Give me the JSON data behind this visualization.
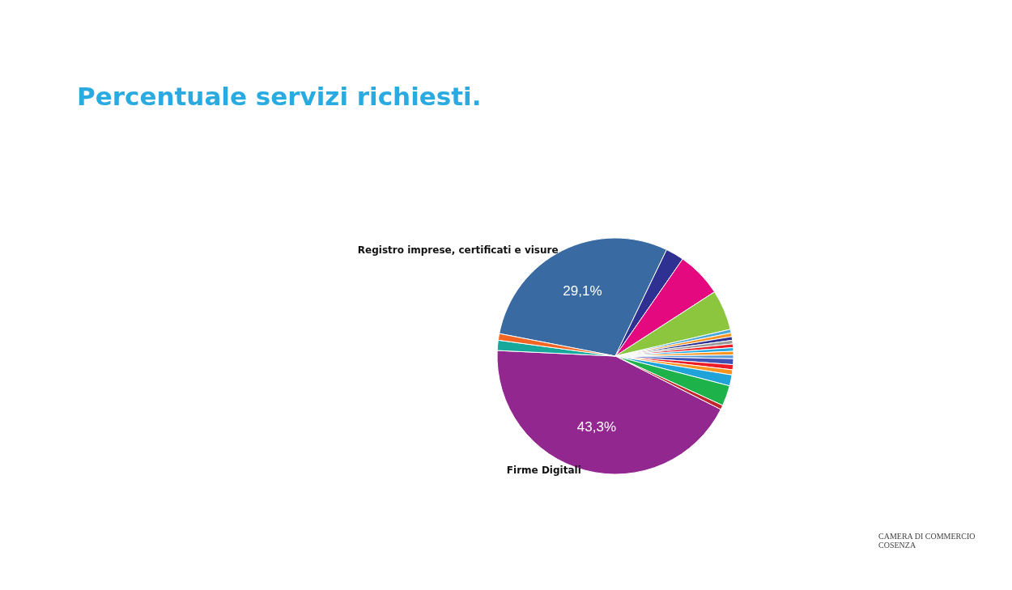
{
  "chart_data": {
    "type": "pie",
    "title": "Percentuale servizi richiesti.",
    "categories": [
      "Registro imprese, certificati e visure",
      null,
      null,
      null,
      null,
      null,
      null,
      null,
      null,
      null,
      null,
      null,
      null,
      null,
      null,
      null,
      null,
      null,
      "Firme Digitali",
      null,
      null
    ],
    "values": [
      29.1,
      2.5,
      6.2,
      5.5,
      0.5,
      0.5,
      0.5,
      0.5,
      0.5,
      0.5,
      0.5,
      0.5,
      0.8,
      0.7,
      0.7,
      1.5,
      2.8,
      0.6,
      43.3,
      1.4,
      0.9
    ],
    "colors": [
      "#3a6aa2",
      "#2e3192",
      "#e4097f",
      "#8cc63f",
      "#4aa8d8",
      "#f7931e",
      "#2e3192",
      "#999999",
      "#ed1c24",
      "#29abe2",
      "#f7931e",
      "#5b9bd5",
      "#3f51b5",
      "#ed1c24",
      "#f7931e",
      "#1fa3d8",
      "#1db34a",
      "#c1272d",
      "#92278f",
      "#16a89a",
      "#f26522"
    ],
    "value_labels": [
      "29,1%",
      null,
      null,
      null,
      null,
      null,
      null,
      null,
      null,
      null,
      null,
      null,
      null,
      null,
      null,
      null,
      null,
      null,
      "43,3%",
      null,
      null
    ],
    "annotations": [
      "CAMERA DI COMMERCIO\nCOSENZA"
    ]
  }
}
